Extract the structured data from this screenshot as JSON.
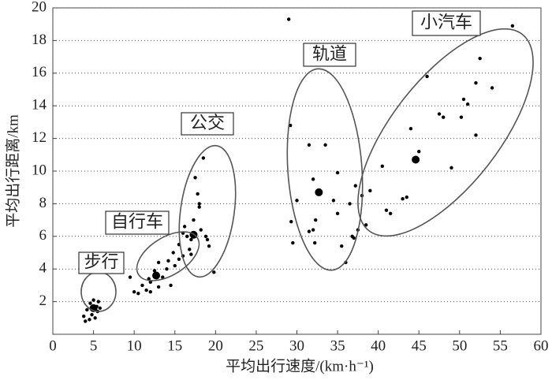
{
  "chart_data": {
    "type": "scatter",
    "xlabel": "平均出行速度/(km·h⁻¹)",
    "ylabel": "平均出行距离/km",
    "xlim": [
      0,
      60
    ],
    "xticks": [
      0,
      5,
      10,
      15,
      20,
      25,
      30,
      35,
      40,
      45,
      50,
      55,
      60
    ],
    "ylim": [
      0,
      20
    ],
    "yticks": [
      2,
      4,
      6,
      8,
      10,
      12,
      14,
      16,
      18,
      20
    ],
    "grid": true,
    "series": [
      {
        "color": "#000000",
        "marker_size": 2.2,
        "x": [
          4.5,
          4.8,
          5.2,
          5.5,
          4.2,
          5.0,
          5.6,
          4.0,
          5.4,
          4.6,
          5.8,
          3.8,
          10,
          10.5,
          11,
          11.5,
          12,
          12,
          13,
          13.5,
          14,
          14.2,
          14.5,
          15,
          15.5,
          13,
          12.5,
          11.8,
          14.8,
          16,
          9.5,
          15.5,
          16,
          16.5,
          16.2,
          17,
          17.5,
          17.8,
          18,
          18.5,
          18.2,
          19,
          19.2,
          17,
          18.8,
          16.8,
          19.8,
          17.3,
          18,
          29,
          29.2,
          29.3,
          29.5,
          30,
          31.5,
          31.5,
          32,
          32,
          32.2,
          32.3,
          33.5,
          34.5,
          35,
          35,
          35.5,
          36,
          36.5,
          36.8,
          37.2,
          37.5,
          38.5,
          39,
          40.5,
          41,
          41.5,
          43,
          43.5,
          44,
          45,
          46,
          47.5,
          48,
          49,
          50.2,
          50.5,
          51,
          52,
          52,
          52.5,
          54,
          56.5,
          38,
          37
        ],
        "y": [
          0.9,
          1.2,
          1.0,
          1.4,
          1.5,
          2.1,
          2.0,
          0.8,
          1.7,
          1.9,
          1.6,
          1.1,
          2.6,
          2.5,
          3.0,
          2.7,
          2.6,
          3.2,
          2.9,
          3.5,
          4.0,
          4.5,
          3.0,
          4.2,
          4.6,
          4.4,
          3.9,
          3.4,
          5.0,
          4.8,
          3.5,
          5.5,
          6.2,
          6.0,
          6.6,
          5.8,
          9.6,
          8.6,
          7.8,
          10.8,
          6.4,
          5.8,
          5.4,
          4.9,
          6.0,
          5.2,
          3.8,
          7.0,
          8.0,
          19.3,
          12.8,
          6.9,
          5.6,
          8.2,
          11.6,
          6.3,
          6.4,
          9.5,
          5.6,
          7.0,
          11.6,
          8.2,
          9.9,
          7.4,
          5.4,
          4.4,
          8.0,
          6.0,
          9.1,
          6.4,
          6.7,
          8.8,
          10.3,
          7.6,
          7.4,
          8.3,
          8.4,
          12.6,
          11.2,
          15.8,
          13.5,
          13.3,
          10.2,
          13.3,
          14.4,
          14.1,
          12.2,
          15.4,
          16.9,
          15.1,
          18.9,
          8.5,
          5.9
        ]
      },
      {
        "color": "#000000",
        "marker_size": 5,
        "x": [
          5,
          12.7,
          17.3,
          32.7,
          44.6
        ],
        "y": [
          1.6,
          3.6,
          6.1,
          8.7,
          10.7
        ]
      }
    ],
    "annotations": [
      "步行",
      "自行车",
      "公交",
      "轨道",
      "小汽车"
    ]
  }
}
